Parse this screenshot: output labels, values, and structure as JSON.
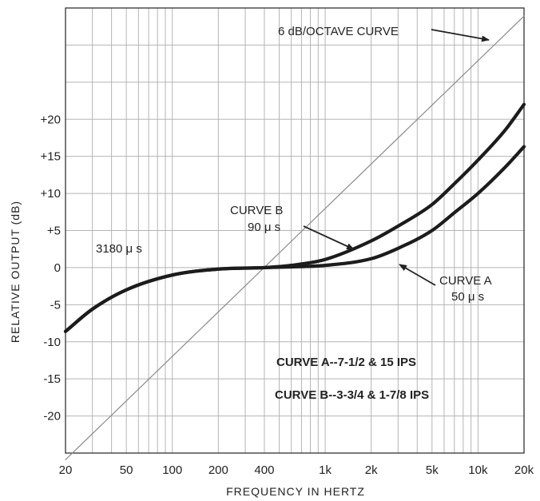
{
  "chart_data": {
    "type": "line",
    "xlabel": "FREQUENCY IN HERTZ",
    "ylabel": "RELATIVE OUTPUT (dB)",
    "x_scale": "log",
    "xlim": [
      20,
      20000
    ],
    "ylim": [
      -25,
      35
    ],
    "x_ticks": [
      {
        "value": 20,
        "label": "20"
      },
      {
        "value": 50,
        "label": "50"
      },
      {
        "value": 100,
        "label": "100"
      },
      {
        "value": 200,
        "label": "200"
      },
      {
        "value": 400,
        "label": "400"
      },
      {
        "value": 1000,
        "label": "1k"
      },
      {
        "value": 2000,
        "label": "2k"
      },
      {
        "value": 5000,
        "label": "5k"
      },
      {
        "value": 10000,
        "label": "10k"
      },
      {
        "value": 20000,
        "label": "20k"
      }
    ],
    "y_ticks": [
      {
        "value": 20,
        "label": "+20"
      },
      {
        "value": 15,
        "label": "+15"
      },
      {
        "value": 10,
        "label": "+10"
      },
      {
        "value": 5,
        "label": "+5"
      },
      {
        "value": 0,
        "label": "0"
      },
      {
        "value": -5,
        "label": "-5"
      },
      {
        "value": -10,
        "label": "-10"
      },
      {
        "value": -15,
        "label": "-15"
      },
      {
        "value": -20,
        "label": "-20"
      }
    ],
    "grid": true,
    "series": [
      {
        "name": "6 dB/OCTAVE CURVE",
        "x": [
          20,
          20000
        ],
        "y": [
          -25.9,
          33.9
        ]
      },
      {
        "name": "CURVE A",
        "x": [
          20,
          30,
          50,
          100,
          200,
          400,
          600,
          1000,
          2000,
          3000,
          5000,
          7000,
          10000,
          15000,
          20000
        ],
        "y": [
          -8.6,
          -5.6,
          -3.0,
          -1.0,
          -0.2,
          0.0,
          0.1,
          0.3,
          1.2,
          2.6,
          5.0,
          7.4,
          10.0,
          13.5,
          16.3
        ]
      },
      {
        "name": "CURVE B",
        "x": [
          20,
          30,
          50,
          100,
          200,
          400,
          600,
          1000,
          2000,
          3000,
          5000,
          7000,
          10000,
          15000,
          20000
        ],
        "y": [
          -8.6,
          -5.6,
          -3.0,
          -1.0,
          -0.2,
          0.0,
          0.3,
          1.1,
          3.6,
          5.6,
          8.5,
          11.3,
          14.5,
          18.5,
          22.0
        ]
      }
    ],
    "annotations": {
      "six_db": "6 dB/OCTAVE CURVE",
      "curve_b_title": "CURVE B",
      "curve_b_value": "90 μ s",
      "curve_a_title": "CURVE A",
      "curve_a_value": "50 μ s",
      "low_tc": "3180 μ s",
      "note_a": "CURVE A--7-1/2 & 15 IPS",
      "note_b": "CURVE B--3-3/4 & 1-7/8 IPS"
    }
  }
}
